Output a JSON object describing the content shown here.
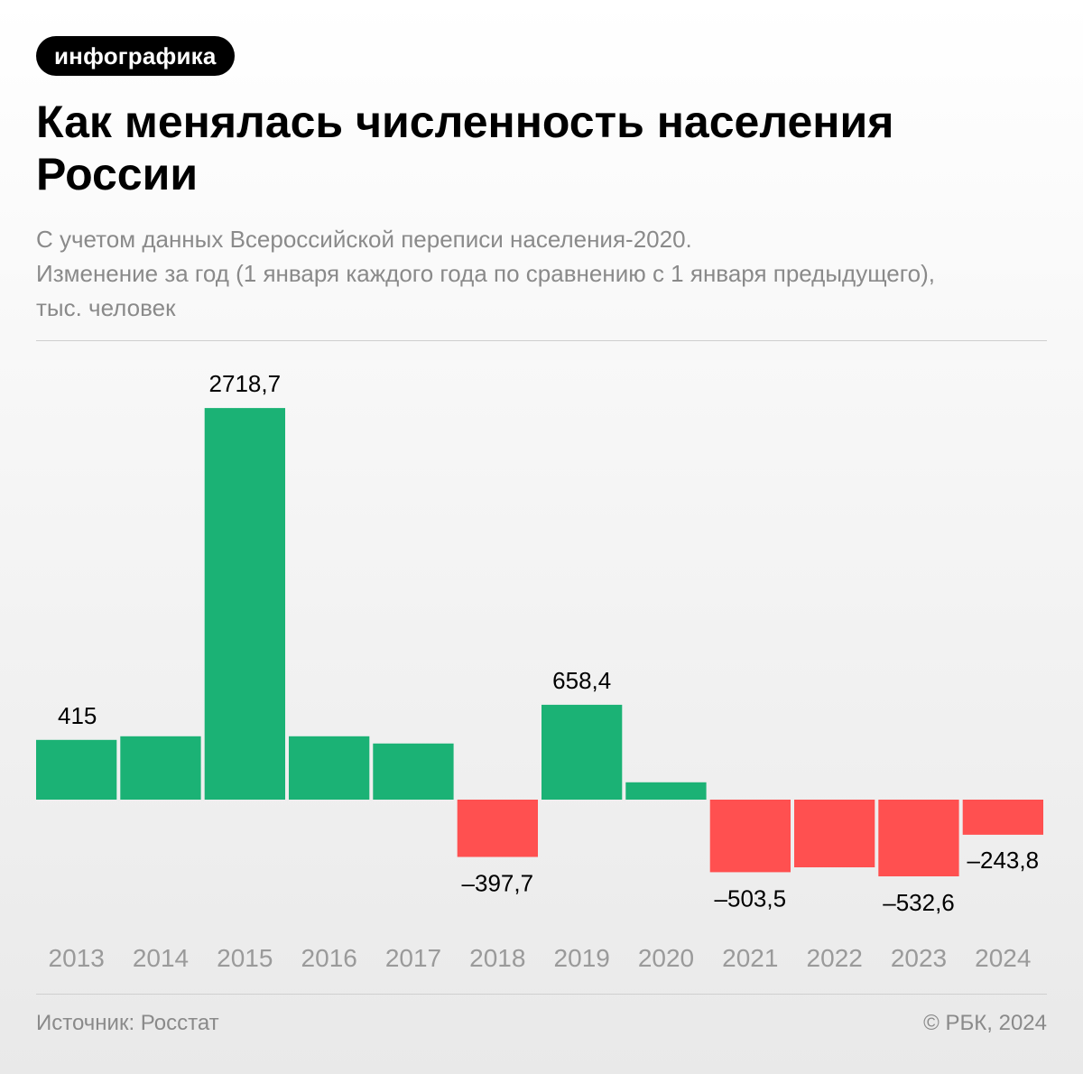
{
  "badge": "инфографика",
  "title": "Как менялась численность населения России",
  "subtitle": [
    "С учетом данных Всероссийской переписи населения-2020.",
    "Изменение за год (1 января каждого года по сравнению с 1 января предыдущего),",
    "тыс. человек"
  ],
  "footer": {
    "source": "Источник: Росстат",
    "copyright": "© РБК, 2024"
  },
  "colors": {
    "positive": "#1bb275",
    "negative": "#ff5050"
  },
  "chart_data": {
    "type": "bar",
    "title": "Как менялась численность населения России",
    "xlabel": "",
    "ylabel": "",
    "categories": [
      "2013",
      "2014",
      "2015",
      "2016",
      "2017",
      "2018",
      "2019",
      "2020",
      "2021",
      "2022",
      "2023",
      "2024"
    ],
    "values": [
      415,
      440,
      2718.7,
      440,
      390,
      -397.7,
      658.4,
      120,
      -503.5,
      -470,
      -532.6,
      -243.8
    ],
    "data_labels": [
      "415",
      null,
      "2718,7",
      null,
      null,
      "–397,7",
      "658,4",
      null,
      "–503,5",
      null,
      "–532,6",
      "–243,8"
    ],
    "grid": false,
    "legend": "none"
  }
}
